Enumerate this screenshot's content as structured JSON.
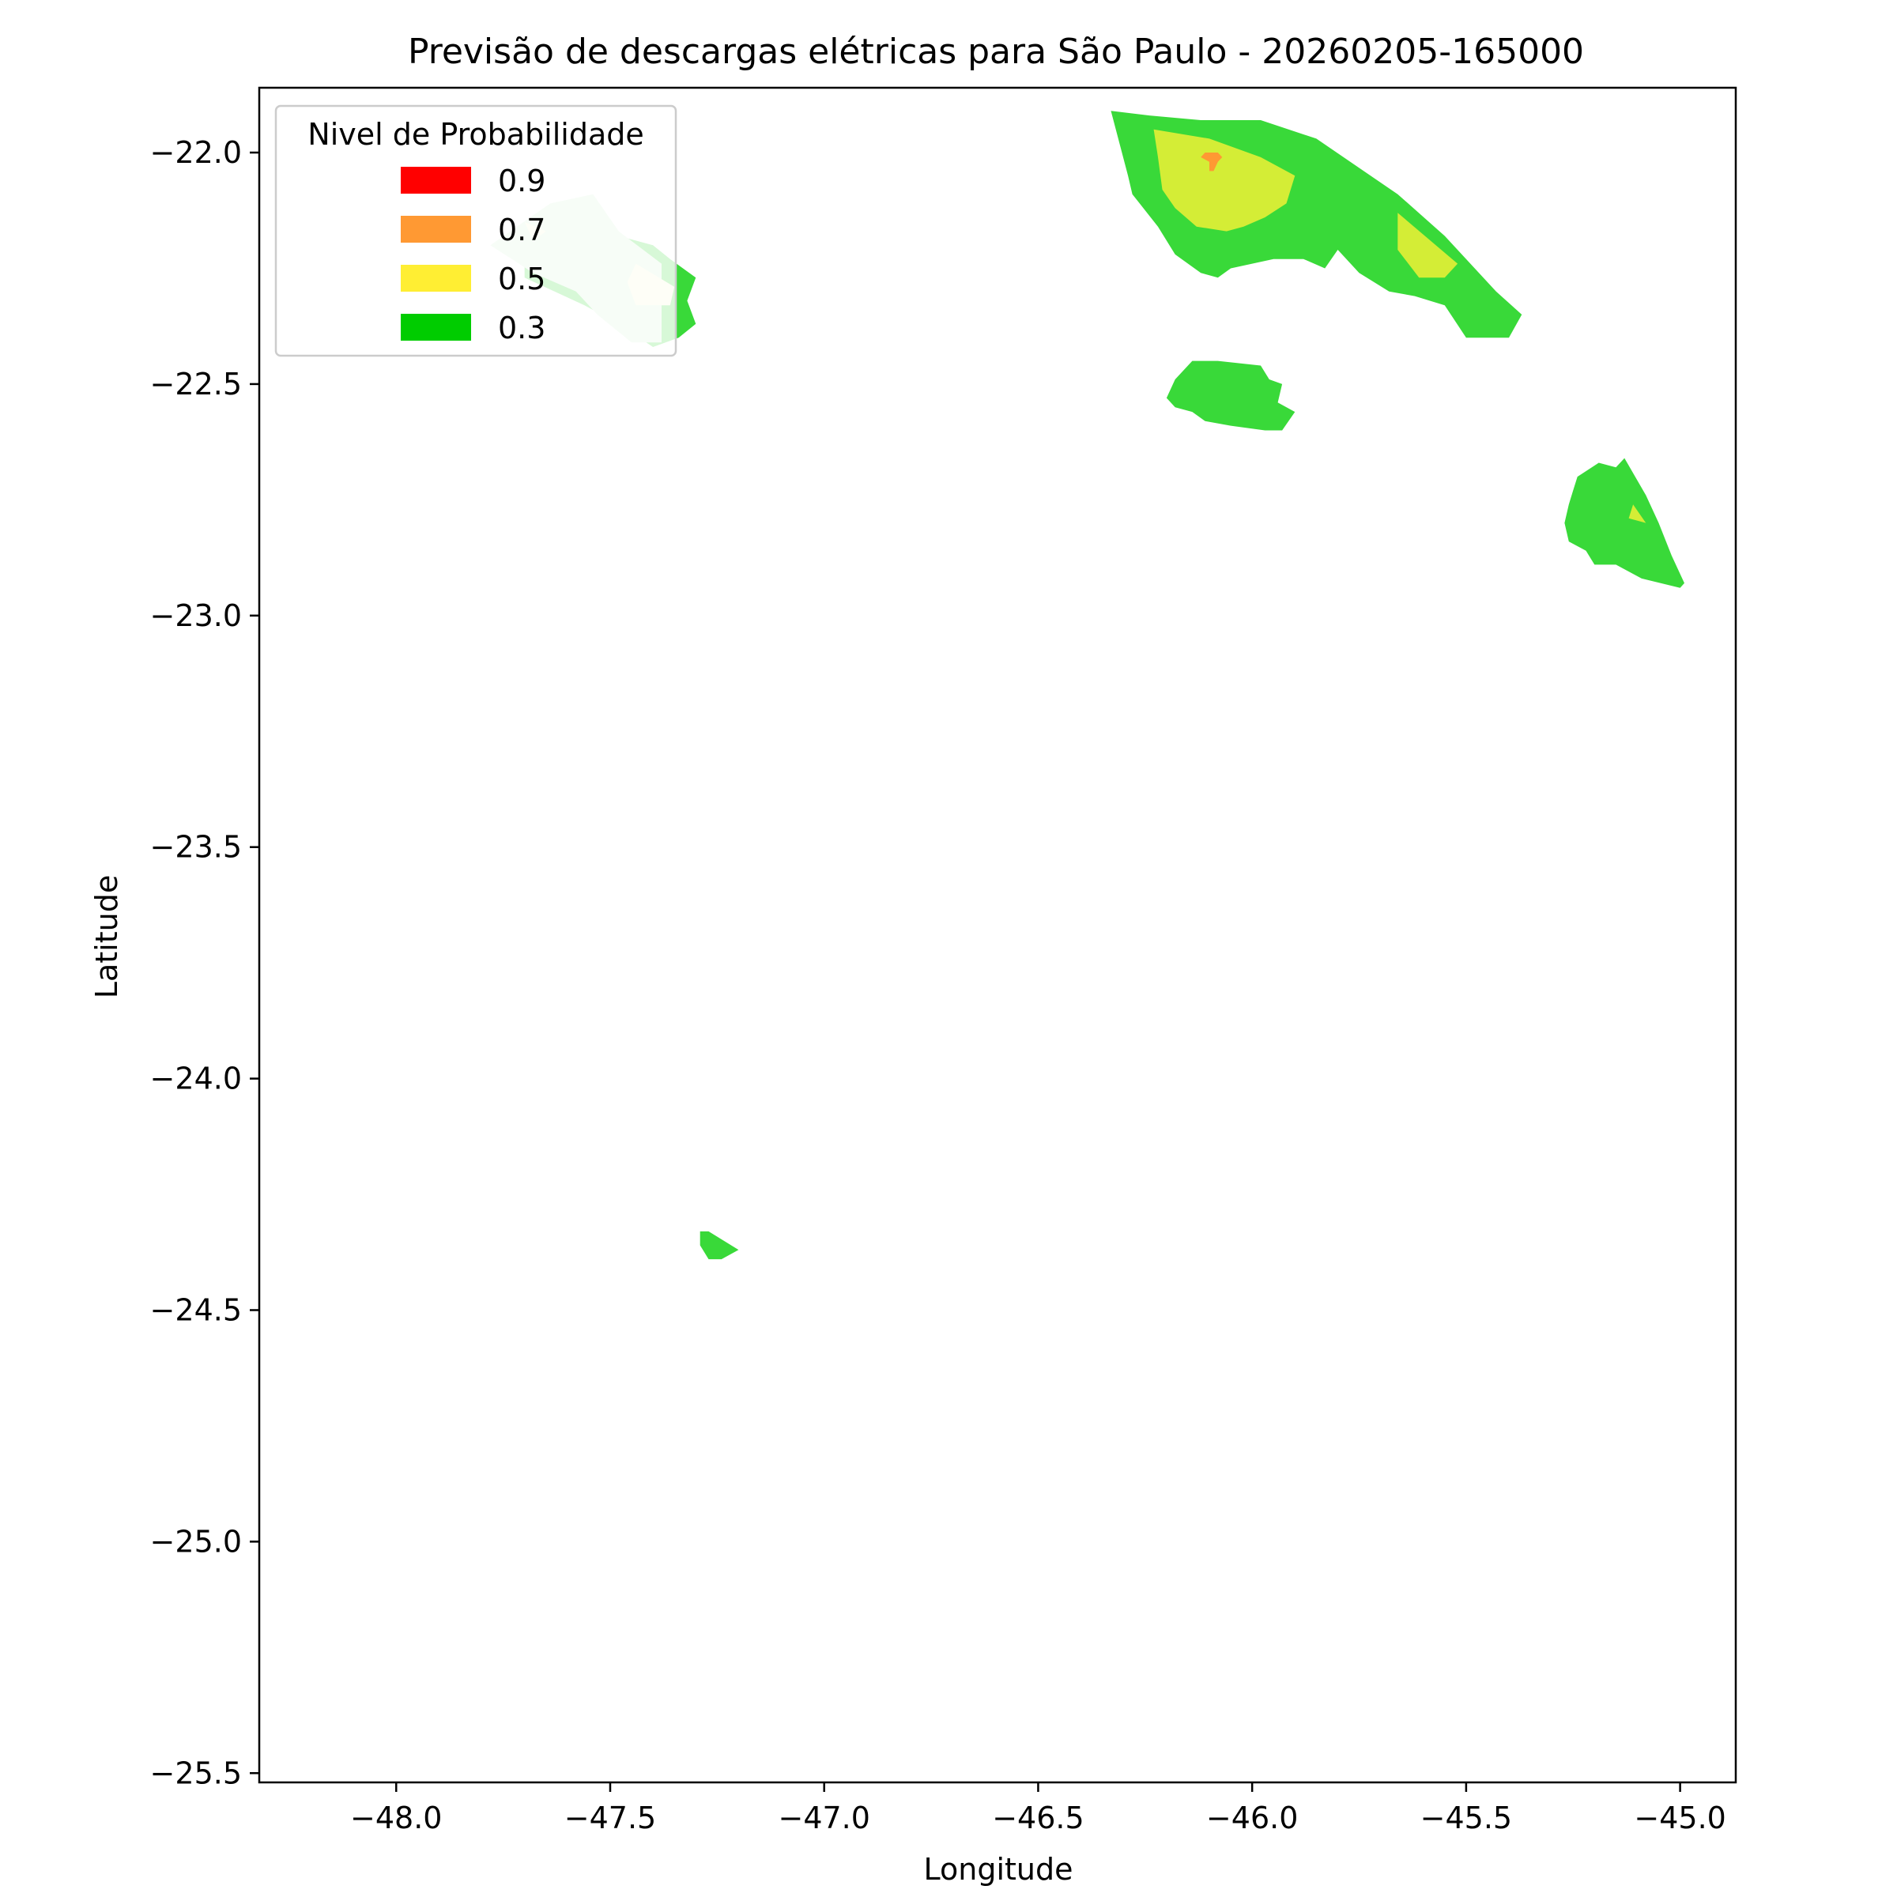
{
  "chart_data": {
    "type": "heatmap",
    "title": "Previsão de descargas elétricas para São Paulo - 20260205-165000",
    "xlabel": "Longitude",
    "ylabel": "Latitude",
    "xlim": [
      -48.32,
      -44.87
    ],
    "ylim": [
      -25.52,
      -21.86
    ],
    "xticks": [
      {
        "value": -48.0,
        "label": "−48.0"
      },
      {
        "value": -47.5,
        "label": "−47.5"
      },
      {
        "value": -47.0,
        "label": "−47.0"
      },
      {
        "value": -46.5,
        "label": "−46.5"
      },
      {
        "value": -46.0,
        "label": "−46.0"
      },
      {
        "value": -45.5,
        "label": "−45.5"
      },
      {
        "value": -45.0,
        "label": "−45.0"
      }
    ],
    "yticks": [
      {
        "value": -22.0,
        "label": "−22.0"
      },
      {
        "value": -22.5,
        "label": "−22.5"
      },
      {
        "value": -23.0,
        "label": "−23.0"
      },
      {
        "value": -23.5,
        "label": "−23.5"
      },
      {
        "value": -24.0,
        "label": "−24.0"
      },
      {
        "value": -24.5,
        "label": "−24.5"
      },
      {
        "value": -25.0,
        "label": "−25.0"
      },
      {
        "value": -25.5,
        "label": "−25.5"
      }
    ],
    "grid": false,
    "legend": {
      "title": "Nivel de Probabilidade",
      "placement": "upper-left",
      "entries": [
        {
          "label": "0.9",
          "color": "#ff0000"
        },
        {
          "label": "0.7",
          "color": "#ff9933"
        },
        {
          "label": "0.5",
          "color": "#ffee33"
        },
        {
          "label": "0.3",
          "color": "#00cc00"
        }
      ]
    },
    "regions": [
      {
        "level": 0.3,
        "color": "#39d939",
        "points": [
          [
            -45.98,
            -21.93
          ],
          [
            -45.85,
            -21.97
          ],
          [
            -45.66,
            -22.09
          ],
          [
            -45.55,
            -22.18
          ],
          [
            -45.43,
            -22.3
          ],
          [
            -45.37,
            -22.35
          ],
          [
            -45.4,
            -22.4
          ],
          [
            -45.5,
            -22.4
          ],
          [
            -45.55,
            -22.33
          ],
          [
            -45.62,
            -22.31
          ],
          [
            -45.68,
            -22.3
          ],
          [
            -45.75,
            -22.26
          ],
          [
            -45.8,
            -22.21
          ],
          [
            -45.83,
            -22.25
          ],
          [
            -45.88,
            -22.23
          ],
          [
            -45.95,
            -22.23
          ],
          [
            -46.05,
            -22.25
          ],
          [
            -46.08,
            -22.27
          ],
          [
            -46.12,
            -22.26
          ],
          [
            -46.18,
            -22.22
          ],
          [
            -46.22,
            -22.16
          ],
          [
            -46.28,
            -22.09
          ],
          [
            -46.29,
            -22.05
          ],
          [
            -46.33,
            -21.91
          ],
          [
            -46.24,
            -21.92
          ],
          [
            -46.12,
            -21.93
          ]
        ]
      },
      {
        "level": 0.5,
        "color": "#d4ed36",
        "points": [
          [
            -46.23,
            -21.95
          ],
          [
            -46.1,
            -21.97
          ],
          [
            -45.98,
            -22.01
          ],
          [
            -45.9,
            -22.05
          ],
          [
            -45.92,
            -22.11
          ],
          [
            -45.97,
            -22.14
          ],
          [
            -46.02,
            -22.16
          ],
          [
            -46.06,
            -22.17
          ],
          [
            -46.13,
            -22.16
          ],
          [
            -46.18,
            -22.12
          ],
          [
            -46.21,
            -22.08
          ],
          [
            -46.22,
            -22.01
          ]
        ]
      },
      {
        "level": 0.5,
        "color": "#d4ed36",
        "points": [
          [
            -45.66,
            -22.13
          ],
          [
            -45.52,
            -22.24
          ],
          [
            -45.55,
            -22.27
          ],
          [
            -45.61,
            -22.27
          ],
          [
            -45.66,
            -22.21
          ]
        ]
      },
      {
        "level": 0.7,
        "color": "#ff9933",
        "points": [
          [
            -46.08,
            -22.0
          ],
          [
            -46.07,
            -22.01
          ],
          [
            -46.08,
            -22.02
          ],
          [
            -46.09,
            -22.04
          ],
          [
            -46.1,
            -22.04
          ],
          [
            -46.1,
            -22.02
          ],
          [
            -46.12,
            -22.01
          ],
          [
            -46.11,
            -22.0
          ]
        ]
      },
      {
        "level": 0.3,
        "color": "#39d939",
        "points": [
          [
            -46.14,
            -22.45
          ],
          [
            -46.08,
            -22.45
          ],
          [
            -45.98,
            -22.46
          ],
          [
            -45.96,
            -22.49
          ],
          [
            -45.93,
            -22.5
          ],
          [
            -45.94,
            -22.54
          ],
          [
            -45.9,
            -22.56
          ],
          [
            -45.93,
            -22.6
          ],
          [
            -45.97,
            -22.6
          ],
          [
            -46.05,
            -22.59
          ],
          [
            -46.11,
            -22.58
          ],
          [
            -46.14,
            -22.56
          ],
          [
            -46.18,
            -22.55
          ],
          [
            -46.2,
            -22.53
          ],
          [
            -46.18,
            -22.49
          ]
        ]
      },
      {
        "level": 0.3,
        "color": "#39d939",
        "points": [
          [
            -45.13,
            -22.66
          ],
          [
            -45.08,
            -22.74
          ],
          [
            -45.05,
            -22.8
          ],
          [
            -45.02,
            -22.87
          ],
          [
            -44.99,
            -22.93
          ],
          [
            -45.0,
            -22.94
          ],
          [
            -45.09,
            -22.92
          ],
          [
            -45.15,
            -22.89
          ],
          [
            -45.2,
            -22.89
          ],
          [
            -45.22,
            -22.86
          ],
          [
            -45.26,
            -22.84
          ],
          [
            -45.27,
            -22.8
          ],
          [
            -45.26,
            -22.76
          ],
          [
            -45.25,
            -22.73
          ],
          [
            -45.24,
            -22.7
          ],
          [
            -45.19,
            -22.67
          ],
          [
            -45.15,
            -22.68
          ]
        ]
      },
      {
        "level": 0.5,
        "color": "#d4ed36",
        "points": [
          [
            -45.11,
            -22.76
          ],
          [
            -45.08,
            -22.8
          ],
          [
            -45.12,
            -22.79
          ]
        ]
      },
      {
        "level": 0.3,
        "color": "#39d939",
        "points": [
          [
            -47.7,
            -22.2
          ],
          [
            -47.58,
            -22.1
          ],
          [
            -47.48,
            -22.18
          ],
          [
            -47.4,
            -22.2
          ],
          [
            -47.36,
            -22.23
          ],
          [
            -47.3,
            -22.27
          ],
          [
            -47.32,
            -22.32
          ],
          [
            -47.3,
            -22.37
          ],
          [
            -47.34,
            -22.4
          ],
          [
            -47.4,
            -22.42
          ],
          [
            -47.48,
            -22.37
          ],
          [
            -47.56,
            -22.33
          ],
          [
            -47.7,
            -22.27
          ]
        ]
      },
      {
        "level": 0.3,
        "color": "#d4f5d4",
        "points": [
          [
            -47.78,
            -22.2
          ],
          [
            -47.64,
            -22.11
          ],
          [
            -47.54,
            -22.09
          ],
          [
            -47.48,
            -22.17
          ],
          [
            -47.38,
            -22.24
          ],
          [
            -47.38,
            -22.33
          ],
          [
            -47.38,
            -22.41
          ],
          [
            -47.45,
            -22.41
          ],
          [
            -47.53,
            -22.35
          ],
          [
            -47.58,
            -22.3
          ],
          [
            -47.68,
            -22.26
          ]
        ]
      },
      {
        "level": 0.5,
        "color": "#fafad4",
        "points": [
          [
            -47.44,
            -22.24
          ],
          [
            -47.35,
            -22.29
          ],
          [
            -47.36,
            -22.33
          ],
          [
            -47.44,
            -22.33
          ],
          [
            -47.46,
            -22.28
          ]
        ]
      },
      {
        "level": 0.5,
        "color": "#fafad4",
        "points": [
          [
            -47.7,
            -22.15
          ],
          [
            -47.65,
            -22.17
          ],
          [
            -47.68,
            -22.19
          ]
        ]
      },
      {
        "level": 0.3,
        "color": "#39d939",
        "points": [
          [
            -47.29,
            -24.33
          ],
          [
            -47.27,
            -24.33
          ],
          [
            -47.2,
            -24.37
          ],
          [
            -47.24,
            -24.39
          ],
          [
            -47.27,
            -24.39
          ],
          [
            -47.29,
            -24.36
          ]
        ]
      }
    ]
  }
}
